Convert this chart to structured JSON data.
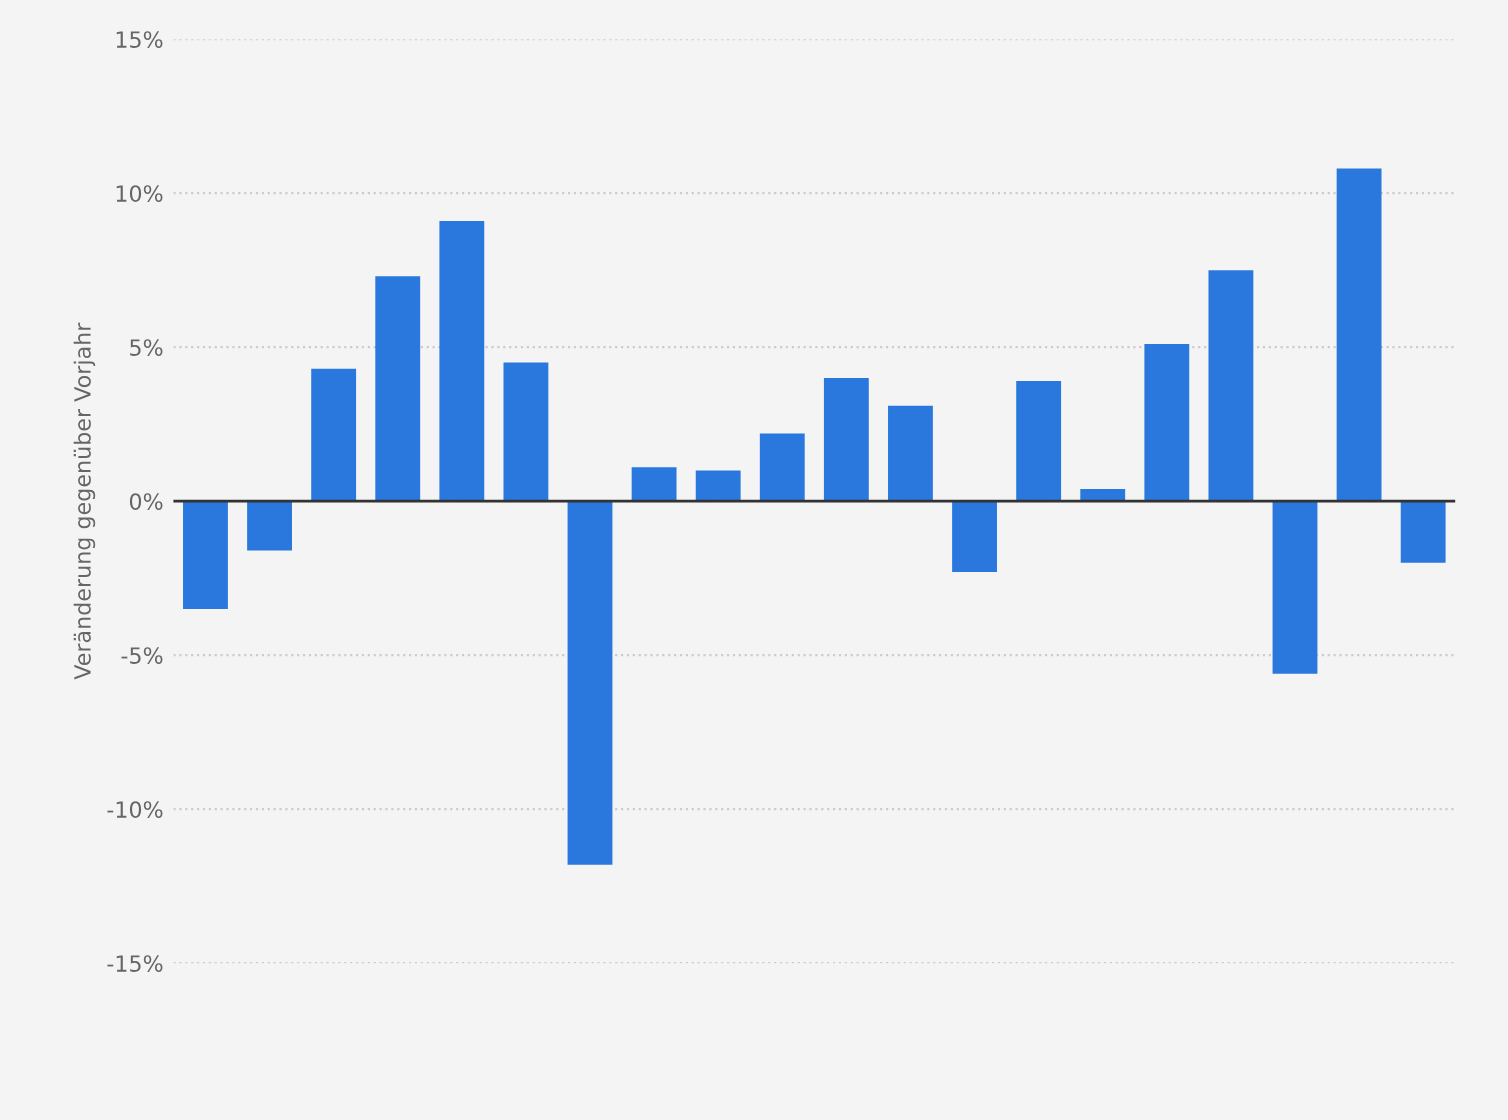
{
  "chart_data": {
    "type": "bar",
    "ylabel": "Veränderung gegenüber Vorjahr",
    "categories": [
      null,
      null,
      null,
      null,
      null,
      null,
      null,
      null,
      null,
      null,
      null,
      null,
      null,
      null,
      null,
      null,
      null,
      null,
      null,
      null
    ],
    "values": [
      -3.5,
      -1.6,
      4.3,
      7.3,
      9.1,
      4.5,
      -11.8,
      1.1,
      1.0,
      2.2,
      4.0,
      3.1,
      -2.3,
      3.9,
      0.4,
      5.1,
      7.5,
      -5.6,
      10.8,
      -2.0
    ],
    "color": "#2a78dd",
    "ylim": [
      -15,
      15
    ],
    "yticks": [
      {
        "value": -15,
        "label": "-15%"
      },
      {
        "value": -10,
        "label": "-10%"
      },
      {
        "value": -5,
        "label": "-5%"
      },
      {
        "value": 0,
        "label": "0%"
      },
      {
        "value": 5,
        "label": "5%"
      },
      {
        "value": 10,
        "label": "10%"
      },
      {
        "value": 15,
        "label": "15%"
      }
    ],
    "grid": "y"
  }
}
